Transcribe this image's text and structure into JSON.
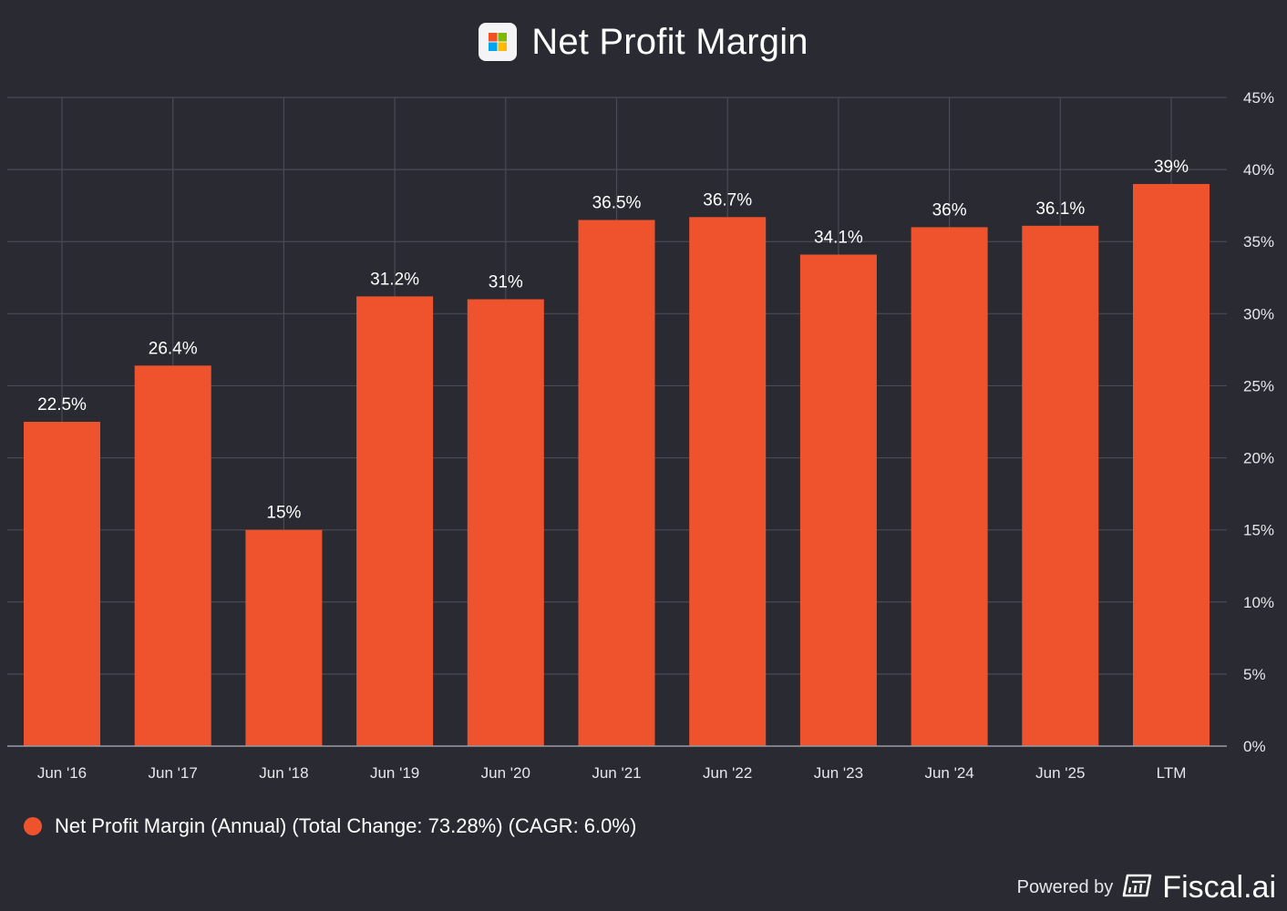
{
  "header": {
    "title": "Net Profit Margin",
    "logo": "microsoft-logo"
  },
  "colors": {
    "background": "#2a2a33",
    "bar": "#ef532d",
    "grid": "#4a4a55",
    "text": "#ffffff",
    "axis": "#e6e6ea"
  },
  "chart_data": {
    "type": "bar",
    "title": "Net Profit Margin",
    "categories": [
      "Jun '16",
      "Jun '17",
      "Jun '18",
      "Jun '19",
      "Jun '20",
      "Jun '21",
      "Jun '22",
      "Jun '23",
      "Jun '24",
      "Jun '25",
      "LTM"
    ],
    "values": [
      22.5,
      26.4,
      15.0,
      31.2,
      31.0,
      36.5,
      36.7,
      34.1,
      36.0,
      36.1,
      39.0
    ],
    "data_labels": [
      "22.5%",
      "26.4%",
      "15%",
      "31.2%",
      "31%",
      "36.5%",
      "36.7%",
      "34.1%",
      "36%",
      "36.1%",
      "39%"
    ],
    "y_ticks": [
      0,
      5,
      10,
      15,
      20,
      25,
      30,
      35,
      40,
      45
    ],
    "y_tick_labels": [
      "0%",
      "5%",
      "10%",
      "15%",
      "20%",
      "25%",
      "30%",
      "35%",
      "40%",
      "45%"
    ],
    "ylim": [
      0,
      45
    ],
    "y_axis_side": "right",
    "grid": true,
    "xlabel": "",
    "ylabel": ""
  },
  "legend": {
    "label": "Net Profit Margin (Annual) (Total Change: 73.28%) (CAGR: 6.0%)",
    "position": "bottom-left"
  },
  "footer": {
    "powered_by": "Powered by",
    "brand": "Fiscal.ai",
    "brand_icon": "fiscal-ai-icon"
  }
}
